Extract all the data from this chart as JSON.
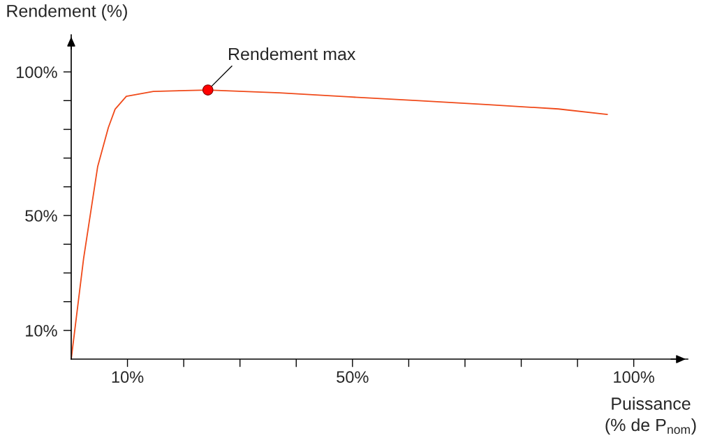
{
  "chart_data": {
    "type": "line",
    "xlabel": "Puissance\n(% de P$_{nom}$)",
    "ylabel": "Rendement (%)",
    "x": [
      0,
      2.2,
      4.7,
      6.6,
      7.8,
      9.8,
      14.6,
      24.3,
      37,
      49.4,
      61.8,
      74.2,
      86.6,
      95.3
    ],
    "series": [
      {
        "type": "line",
        "color": "#f04a1a",
        "values": [
          0,
          35,
          67,
          80.6,
          87,
          91.5,
          93.2,
          93.7,
          92.7,
          91.3,
          90,
          88.6,
          87.1,
          85.2
        ]
      },
      {
        "type": "scatter",
        "marker": "circle",
        "color": "#ff0000",
        "x": [
          24.3
        ],
        "values": [
          93.7
        ]
      }
    ],
    "annotations": [
      {
        "text": "Rendement max",
        "x": 24.3,
        "y": 93.7
      }
    ],
    "xlim": [
      0,
      109.6
    ],
    "ylim": [
      0,
      112.9
    ],
    "xticks": [
      {
        "value": 10,
        "label": "10%"
      },
      {
        "value": 20,
        "label": null
      },
      {
        "value": 30,
        "label": null
      },
      {
        "value": 40,
        "label": null
      },
      {
        "value": 50,
        "label": "50%"
      },
      {
        "value": 60,
        "label": null
      },
      {
        "value": 70,
        "label": null
      },
      {
        "value": 80,
        "label": null
      },
      {
        "value": 90,
        "label": null
      },
      {
        "value": 100,
        "label": "100%"
      }
    ],
    "yticks": [
      {
        "value": 10,
        "label": "10%"
      },
      {
        "value": 20,
        "label": null
      },
      {
        "value": 30,
        "label": null
      },
      {
        "value": 40,
        "label": null
      },
      {
        "value": 50,
        "label": "50%"
      },
      {
        "value": 60,
        "label": null
      },
      {
        "value": 70,
        "label": null
      },
      {
        "value": 80,
        "label": null
      },
      {
        "value": 90,
        "label": null
      },
      {
        "value": 100,
        "label": "100%"
      }
    ],
    "grid": false,
    "marker": "none",
    "line_style": "solid"
  }
}
